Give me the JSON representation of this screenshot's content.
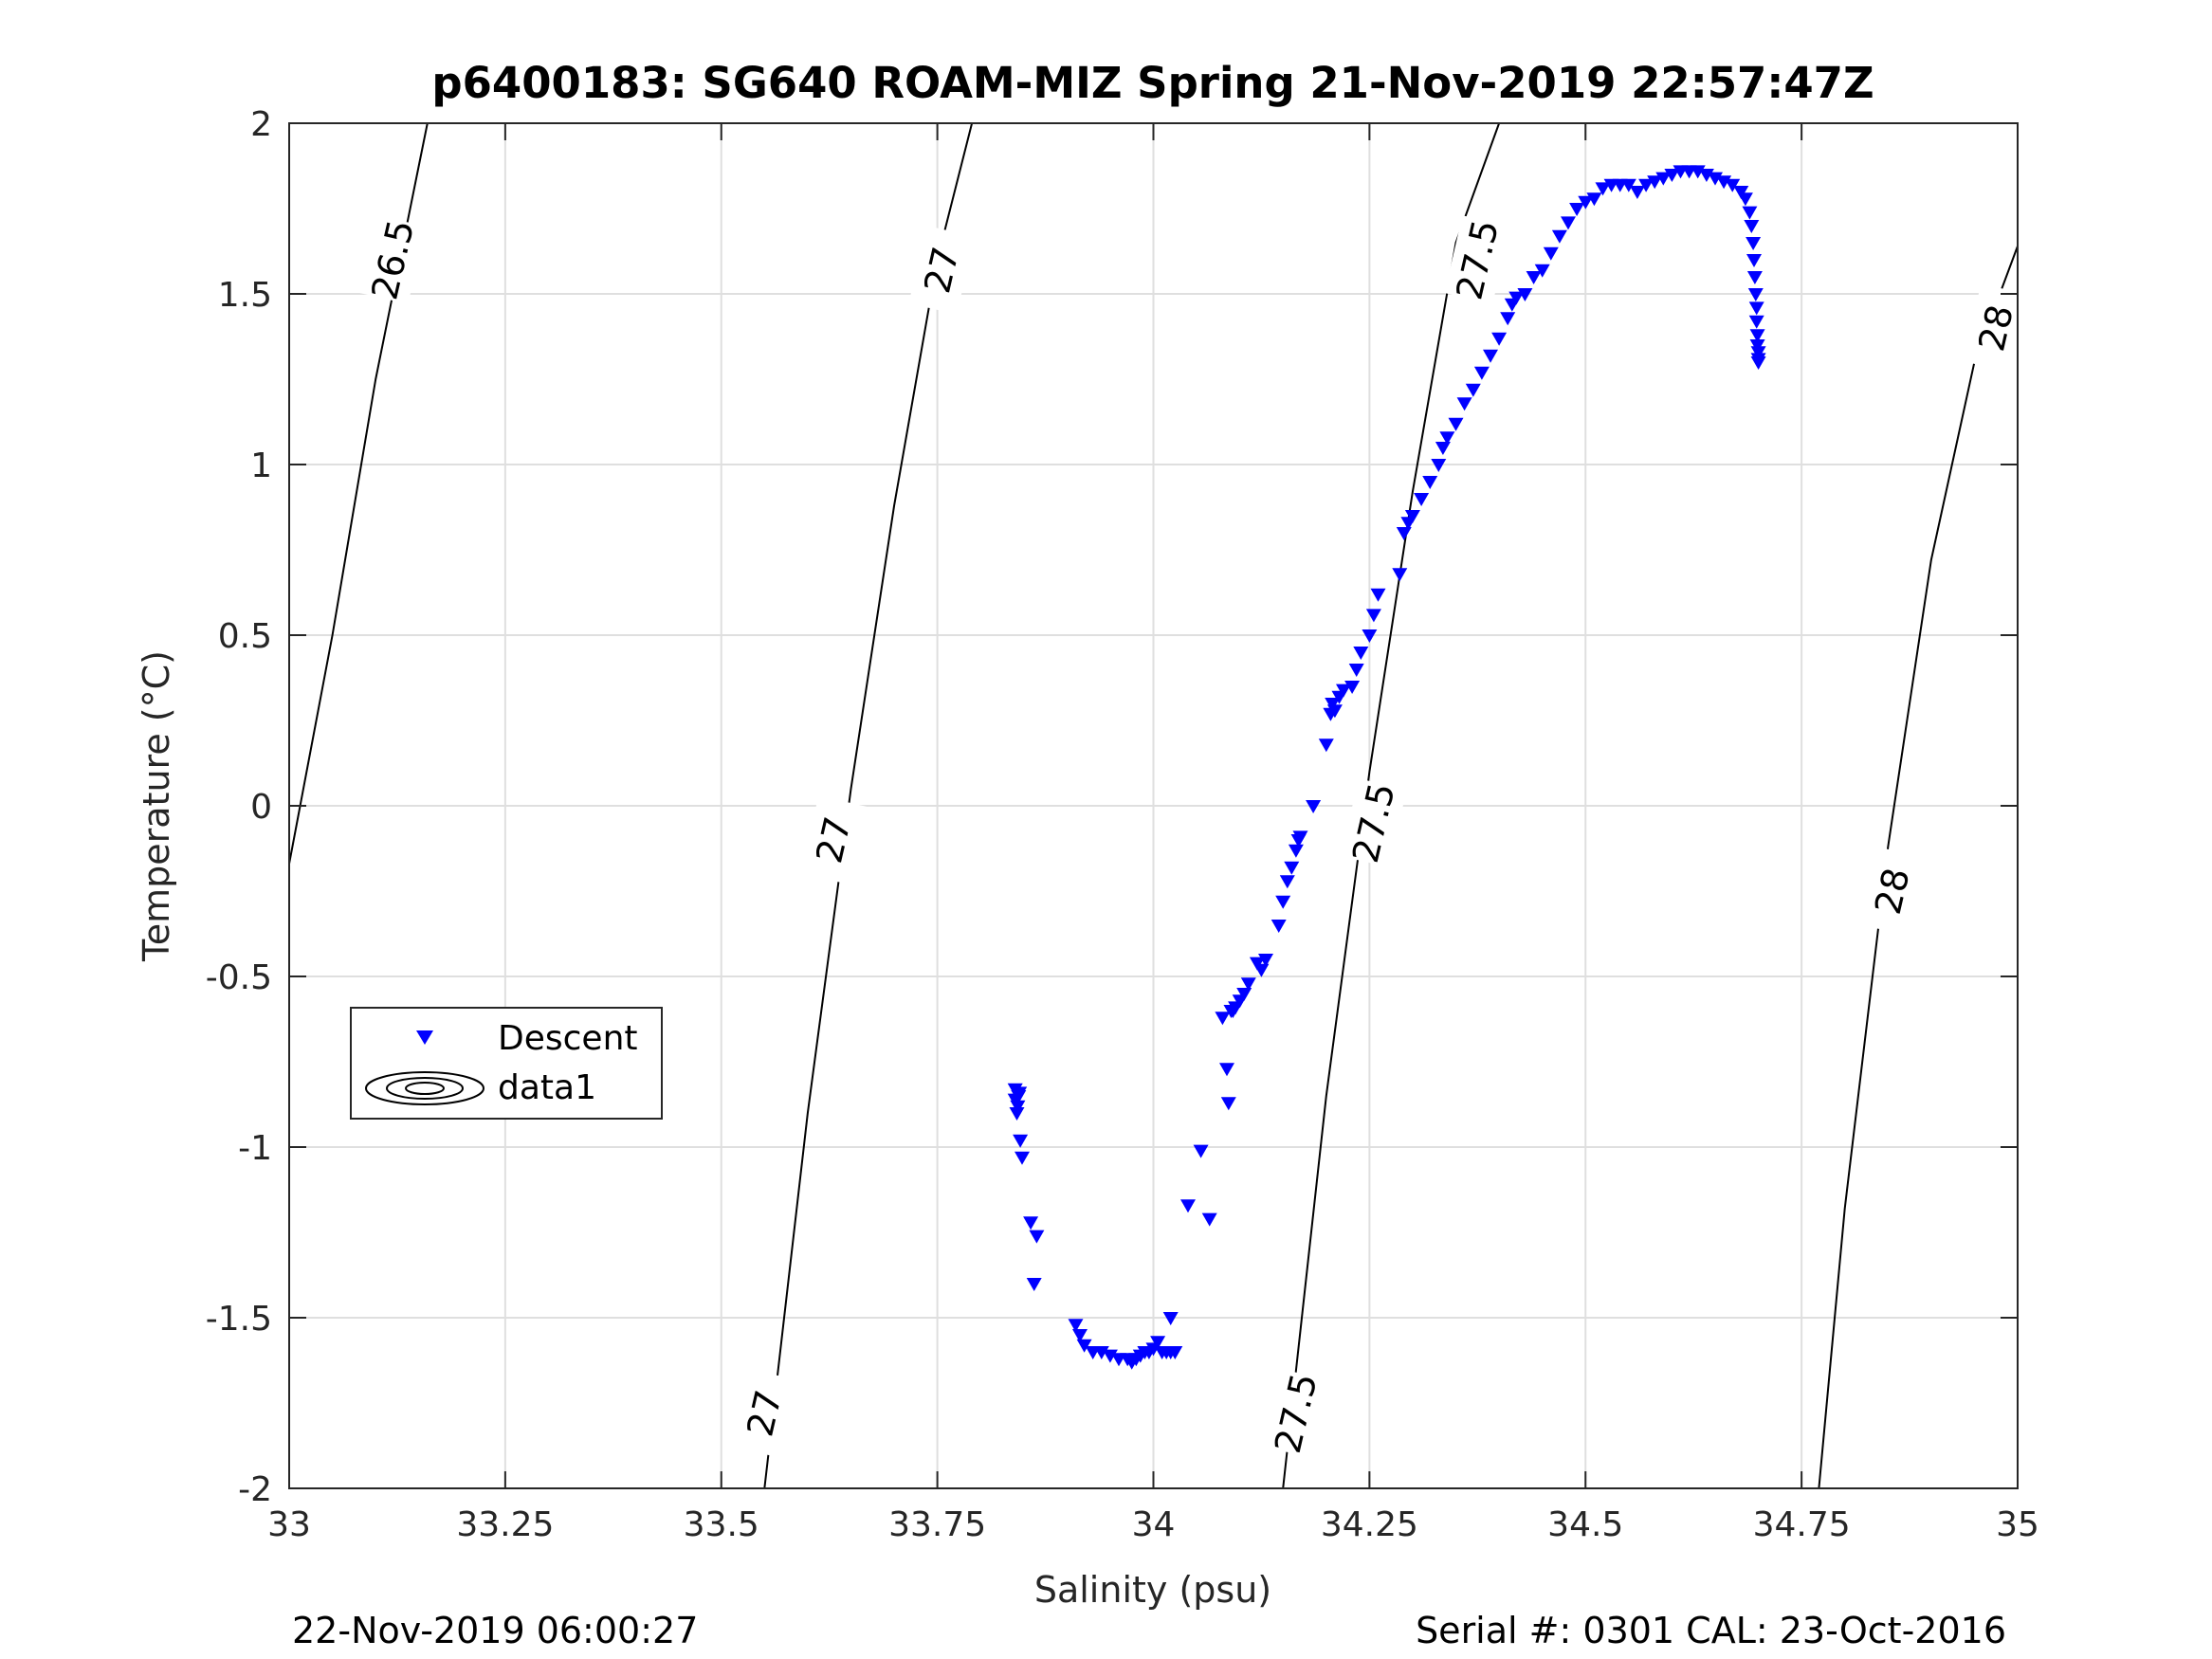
{
  "chart_data": {
    "type": "scatter",
    "title": "p6400183: SG640 ROAM-MIZ Spring 21-Nov-2019 22:57:47Z",
    "xlabel": "Salinity (psu)",
    "ylabel": "Temperature (°C)",
    "xlim": [
      33,
      35
    ],
    "ylim": [
      -2,
      2
    ],
    "xticks": [
      33,
      33.25,
      33.5,
      33.75,
      34,
      34.25,
      34.5,
      34.75,
      35
    ],
    "xtick_labels": [
      "33",
      "33.25",
      "33.5",
      "33.75",
      "34",
      "34.25",
      "34.5",
      "34.75",
      "35"
    ],
    "yticks": [
      -2,
      -1.5,
      -1,
      -0.5,
      0,
      0.5,
      1,
      1.5,
      2
    ],
    "ytick_labels": [
      "-2",
      "-1.5",
      "-1",
      "-0.5",
      "0",
      "0.5",
      "1",
      "1.5",
      "2"
    ],
    "grid": true,
    "legend": {
      "position": "left",
      "entries": [
        "Descent",
        "data1"
      ]
    },
    "marker_color": "#0000ff",
    "series": [
      {
        "name": "Descent",
        "marker": "down-triangle",
        "x": [
          33.84,
          33.84,
          33.843,
          33.842,
          33.845,
          33.844,
          33.846,
          33.848,
          33.858,
          33.865,
          33.862,
          33.91,
          33.915,
          33.92,
          33.93,
          33.94,
          33.95,
          33.96,
          33.97,
          33.975,
          33.98,
          33.985,
          33.99,
          33.995,
          34.0,
          34.005,
          34.01,
          34.015,
          34.02,
          34.025,
          34.02,
          34.04,
          34.055,
          34.065,
          34.08,
          34.085,
          34.087,
          34.09,
          34.092,
          34.095,
          34.1,
          34.105,
          34.11,
          34.12,
          34.125,
          34.13,
          34.145,
          34.15,
          34.155,
          34.16,
          34.165,
          34.168,
          34.17,
          34.185,
          34.2,
          34.205,
          34.207,
          34.21,
          34.215,
          34.22,
          34.23,
          34.235,
          34.24,
          34.25,
          34.255,
          34.26,
          34.285,
          34.29,
          34.295,
          34.3,
          34.31,
          34.32,
          34.33,
          34.335,
          34.34,
          34.35,
          34.36,
          34.37,
          34.38,
          34.39,
          34.4,
          34.41,
          34.415,
          34.42,
          34.43,
          34.44,
          34.45,
          34.46,
          34.47,
          34.48,
          34.49,
          34.5,
          34.51,
          34.52,
          34.53,
          34.54,
          34.55,
          34.56,
          34.57,
          34.58,
          34.59,
          34.6,
          34.61,
          34.62,
          34.63,
          34.64,
          34.65,
          34.66,
          34.67,
          34.68,
          34.685,
          34.69,
          34.692,
          34.694,
          34.695,
          34.696,
          34.697,
          34.698,
          34.698,
          34.699,
          34.699,
          34.7,
          34.7,
          34.7
        ],
        "y": [
          -0.83,
          -0.86,
          -0.88,
          -0.9,
          -0.84,
          -0.85,
          -0.98,
          -1.03,
          -1.22,
          -1.26,
          -1.4,
          -1.52,
          -1.55,
          -1.58,
          -1.6,
          -1.6,
          -1.61,
          -1.62,
          -1.62,
          -1.63,
          -1.62,
          -1.61,
          -1.6,
          -1.6,
          -1.59,
          -1.57,
          -1.6,
          -1.6,
          -1.6,
          -1.6,
          -1.5,
          -1.17,
          -1.01,
          -1.21,
          -0.62,
          -0.77,
          -0.87,
          -0.6,
          -0.6,
          -0.59,
          -0.57,
          -0.55,
          -0.52,
          -0.46,
          -0.48,
          -0.45,
          -0.35,
          -0.28,
          -0.22,
          -0.18,
          -0.13,
          -0.1,
          -0.09,
          0.0,
          0.18,
          0.27,
          0.3,
          0.28,
          0.32,
          0.34,
          0.35,
          0.4,
          0.45,
          0.5,
          0.56,
          0.62,
          0.68,
          0.8,
          0.83,
          0.85,
          0.9,
          0.95,
          1.0,
          1.05,
          1.08,
          1.12,
          1.18,
          1.22,
          1.27,
          1.32,
          1.37,
          1.43,
          1.47,
          1.49,
          1.5,
          1.55,
          1.57,
          1.62,
          1.67,
          1.71,
          1.75,
          1.77,
          1.78,
          1.81,
          1.82,
          1.82,
          1.82,
          1.8,
          1.82,
          1.83,
          1.84,
          1.85,
          1.86,
          1.86,
          1.86,
          1.85,
          1.84,
          1.83,
          1.82,
          1.8,
          1.78,
          1.74,
          1.7,
          1.65,
          1.6,
          1.55,
          1.5,
          1.46,
          1.42,
          1.38,
          1.35,
          1.33,
          1.31,
          1.3
        ]
      },
      {
        "name": "data1",
        "type": "contour",
        "levels": [
          26.5,
          27,
          27.5,
          28
        ],
        "lines": [
          {
            "level": 26.5,
            "x": [
              33.0,
              33.05,
              33.1,
              33.16
            ],
            "y": [
              -0.17,
              0.5,
              1.25,
              2.0
            ]
          },
          {
            "level": 27,
            "x": [
              33.55,
              33.6,
              33.65,
              33.7,
              33.75,
              33.79
            ],
            "y": [
              -2.0,
              -0.9,
              0.05,
              0.88,
              1.6,
              2.0
            ]
          },
          {
            "level": 27.5,
            "x": [
              34.15,
              34.2,
              34.25,
              34.3,
              34.35,
              34.4
            ],
            "y": [
              -2.0,
              -0.85,
              0.1,
              0.92,
              1.65,
              2.0
            ]
          },
          {
            "level": 28,
            "x": [
              34.77,
              34.8,
              34.85,
              34.9,
              34.95,
              35.0
            ],
            "y": [
              -2.0,
              -1.18,
              -0.12,
              0.72,
              1.3,
              1.64
            ]
          }
        ],
        "labels": [
          {
            "text": "26.5",
            "x": 33.12,
            "y": 1.6
          },
          {
            "text": "27",
            "x": 33.755,
            "y": 1.57
          },
          {
            "text": "27",
            "x": 33.63,
            "y": -0.1
          },
          {
            "text": "27",
            "x": 33.55,
            "y": -1.78
          },
          {
            "text": "27.5",
            "x": 34.375,
            "y": 1.6
          },
          {
            "text": "27.5",
            "x": 34.255,
            "y": -0.05
          },
          {
            "text": "27.5",
            "x": 34.165,
            "y": -1.78
          },
          {
            "text": "28",
            "x": 34.975,
            "y": 1.4
          },
          {
            "text": "28",
            "x": 34.855,
            "y": -0.25
          }
        ]
      }
    ]
  },
  "footer": {
    "left": "22-Nov-2019 06:00:27",
    "right": "Serial #: 0301  CAL: 23-Oct-2016"
  }
}
